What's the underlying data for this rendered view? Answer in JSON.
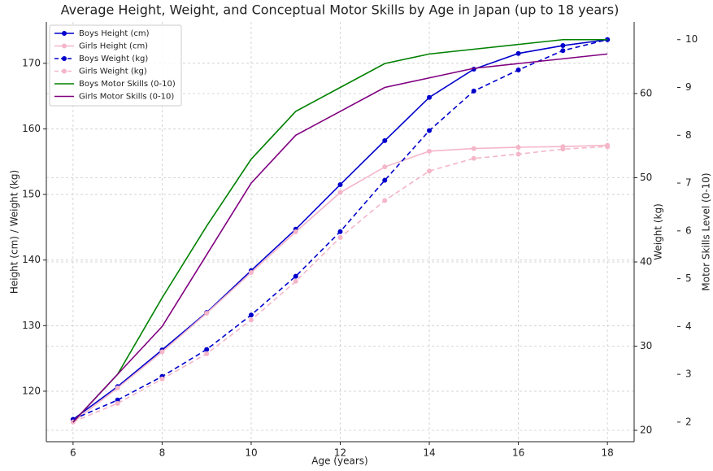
{
  "chart_data": {
    "type": "line",
    "title": "Average Height, Weight, and Conceptual Motor Skills by Age in Japan (up to 18 years)",
    "xlabel": "Age (years)",
    "ylabel": "Height (cm) / Weight (kg)",
    "y2label": "Weight (kg)",
    "y3label": "Motor Skills Level (0-10)",
    "x": [
      6,
      7,
      8,
      9,
      10,
      11,
      12,
      13,
      14,
      15,
      16,
      17,
      18
    ],
    "xlim": [
      5.4,
      18.6
    ],
    "xticks": [
      6,
      8,
      10,
      12,
      14,
      16,
      18
    ],
    "ylim": [
      112.3,
      176.3
    ],
    "yticks": [
      120,
      130,
      140,
      150,
      160,
      170
    ],
    "y2lim": [
      18.65,
      68.5
    ],
    "y2ticks": [
      20,
      30,
      40,
      50,
      60
    ],
    "y3lim": [
      1.59,
      10.37
    ],
    "y3ticks": [
      2,
      3,
      4,
      5,
      6,
      7,
      8,
      9,
      10
    ],
    "grid": true,
    "legend": "upper left",
    "series": [
      {
        "name": "Boys Height (cm)",
        "color": "#0000cc",
        "linestyle": "solid",
        "marker": true,
        "axis": "y",
        "values": [
          115.7,
          120.7,
          126.3,
          132.0,
          138.4,
          144.7,
          151.5,
          158.2,
          164.8,
          169.1,
          171.5,
          172.7,
          173.6
        ]
      },
      {
        "name": "Girls Height (cm)",
        "color": "#f4b6c8",
        "linestyle": "solid",
        "marker": true,
        "axis": "y",
        "values": [
          115.3,
          120.5,
          126.0,
          131.9,
          138.1,
          144.3,
          150.3,
          154.2,
          156.6,
          157.0,
          157.2,
          157.3,
          157.5
        ]
      },
      {
        "name": "Boys Weight (kg)",
        "color": "#0000cc",
        "linestyle": "dashed",
        "marker": true,
        "axis": "y2",
        "values": [
          21.3,
          23.6,
          26.4,
          29.6,
          33.7,
          38.3,
          43.6,
          49.7,
          55.6,
          60.3,
          62.8,
          65.1,
          66.4
        ]
      },
      {
        "name": "Girls Weight (kg)",
        "color": "#f4b6c8",
        "linestyle": "dashed",
        "marker": true,
        "axis": "y2",
        "values": [
          21.0,
          23.2,
          26.1,
          29.1,
          33.1,
          37.7,
          42.9,
          47.3,
          50.8,
          52.3,
          52.8,
          53.4,
          53.7
        ]
      },
      {
        "name": "Boys Motor Skills (0-10)",
        "color": "#008000",
        "linestyle": "solid",
        "marker": false,
        "axis": "y3",
        "values": [
          2.0,
          3.0,
          4.6,
          6.1,
          7.5,
          8.5,
          9.0,
          9.5,
          9.7,
          9.8,
          9.9,
          10.0,
          10.0
        ]
      },
      {
        "name": "Girls Motor Skills (0-10)",
        "color": "#800080",
        "linestyle": "solid",
        "marker": false,
        "axis": "y3",
        "values": [
          2.0,
          3.0,
          4.0,
          5.5,
          7.0,
          8.0,
          8.5,
          9.0,
          9.2,
          9.4,
          9.5,
          9.6,
          9.7
        ]
      }
    ]
  }
}
